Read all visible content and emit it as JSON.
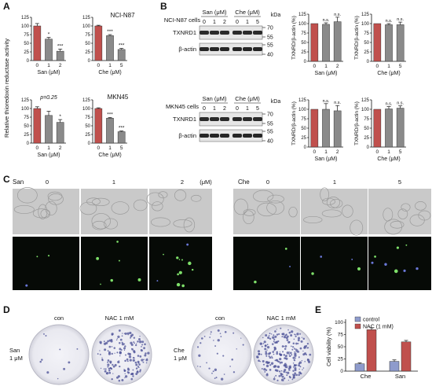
{
  "colors": {
    "red": "#c0504d",
    "grey": "#8a8a8a",
    "blue": "#8e9bcc",
    "axis": "#111111"
  },
  "panels": {
    "A": {
      "label": "A",
      "ylabel": "Relative thioredoxin reductase activity",
      "charts": [
        {
          "title": "",
          "cell_line": "",
          "xlabel": "San (μM)",
          "ticks": [
            "0",
            "1",
            "2"
          ],
          "ylim": [
            0,
            125
          ],
          "yticks": [
            "0",
            "25",
            "50",
            "75",
            "100",
            "125"
          ],
          "p_text": "",
          "sig": [
            "",
            "*",
            "***"
          ]
        },
        {
          "title": "NCI-N87",
          "cell_line": "NCI-N87",
          "xlabel": "Che (μM)",
          "ticks": [
            "0",
            "1",
            "5"
          ],
          "ylim": [
            0,
            125
          ],
          "yticks": [
            "0",
            "25",
            "50",
            "75",
            "100",
            "125"
          ],
          "p_text": "",
          "sig": [
            "",
            "***",
            "***"
          ]
        },
        {
          "title": "",
          "cell_line": "",
          "xlabel": "San (μM)",
          "ticks": [
            "0",
            "1",
            "2"
          ],
          "ylim": [
            0,
            125
          ],
          "yticks": [
            "0",
            "25",
            "50",
            "75",
            "100",
            "125"
          ],
          "p_text": "p=0.25",
          "sig": [
            "",
            "",
            "*"
          ]
        },
        {
          "title": "MKN45",
          "cell_line": "MKN45",
          "xlabel": "Che (μM)",
          "ticks": [
            "0",
            "1",
            "5"
          ],
          "ylim": [
            0,
            125
          ],
          "yticks": [
            "0",
            "25",
            "50",
            "75",
            "100",
            "125"
          ],
          "p_text": "",
          "sig": [
            "",
            "***",
            "***"
          ]
        }
      ]
    },
    "B": {
      "label": "B",
      "kda": "kDa",
      "blots": [
        {
          "cells": "NCI-N87 cells",
          "drug1": "San (μM)",
          "drug2": "Che (μM)",
          "lanes": [
            "0",
            "1",
            "2",
            "0",
            "1",
            "5"
          ],
          "rows": [
            "TXNRD1",
            "β-actin"
          ],
          "markers": [
            "70",
            "55",
            "55",
            "40"
          ]
        },
        {
          "cells": "MKN45 cells",
          "drug1": "San (μM)",
          "drug2": "Che (μM)",
          "lanes": [
            "0",
            "1",
            "2",
            "0",
            "1",
            "5"
          ],
          "rows": [
            "TXNRD1",
            "β-actin"
          ],
          "markers": [
            "70",
            "55",
            "55",
            "40"
          ]
        }
      ],
      "ylabel": "TXNRD/β-actin (%)",
      "charts": [
        {
          "xlabel": "San (μM)",
          "ticks": [
            "0",
            "1",
            "2"
          ],
          "sig": [
            "",
            "n.s.",
            "n.s."
          ],
          "yticks": [
            "0",
            "25",
            "50",
            "75",
            "100",
            "125"
          ]
        },
        {
          "xlabel": "Che (μM)",
          "ticks": [
            "0",
            "1",
            "5"
          ],
          "sig": [
            "",
            "n.s.",
            "n.s."
          ],
          "yticks": [
            "0",
            "25",
            "50",
            "75",
            "100",
            "125"
          ]
        },
        {
          "xlabel": "San (μM)",
          "ticks": [
            "0",
            "1",
            "2"
          ],
          "sig": [
            "",
            "n.s.",
            "n.s."
          ],
          "yticks": [
            "0",
            "25",
            "50",
            "75",
            "100",
            "125"
          ]
        },
        {
          "xlabel": "Che (μM)",
          "ticks": [
            "0",
            "1",
            "5"
          ],
          "sig": [
            "",
            "n.s.",
            "n.s."
          ],
          "yticks": [
            "0",
            "25",
            "50",
            "75",
            "100",
            "125"
          ]
        }
      ]
    },
    "C": {
      "label": "C",
      "san": "San",
      "che": "Che",
      "unit": "(μM)",
      "san_doses": [
        "0",
        "1",
        "2"
      ],
      "che_doses": [
        "0",
        "1",
        "5"
      ]
    },
    "D": {
      "label": "D",
      "con": "con",
      "nac": "NAC 1 mM",
      "san_row": [
        "San",
        "1 μM"
      ],
      "che_row": [
        "Che",
        "1 μM"
      ]
    },
    "E": {
      "label": "E",
      "ylabel": "Cell viability (%)",
      "legend": [
        "control",
        "NAC (1 mM)"
      ],
      "categories": [
        "Che",
        "San"
      ],
      "yticks": [
        "0",
        "25",
        "50",
        "75",
        "100"
      ]
    }
  },
  "chart_data": [
    {
      "type": "bar",
      "categories": [
        "0",
        "1",
        "2"
      ],
      "values": [
        100,
        62,
        27
      ],
      "errors": [
        7,
        5,
        6
      ],
      "xlabel": "San (μM)",
      "ylabel": "Relative thioredoxin reductase activity",
      "ylim": [
        0,
        125
      ]
    },
    {
      "type": "bar",
      "categories": [
        "0",
        "1",
        "5"
      ],
      "values": [
        100,
        72,
        32
      ],
      "errors": [
        2,
        3,
        3
      ],
      "xlabel": "Che (μM)",
      "title": "NCI-N87",
      "ylim": [
        0,
        125
      ]
    },
    {
      "type": "bar",
      "categories": [
        "0",
        "1",
        "2"
      ],
      "values": [
        100,
        80,
        60
      ],
      "errors": [
        5,
        12,
        8
      ],
      "xlabel": "San (μM)",
      "ylim": [
        0,
        125
      ]
    },
    {
      "type": "bar",
      "categories": [
        "0",
        "1",
        "5"
      ],
      "values": [
        100,
        72,
        33
      ],
      "errors": [
        2,
        2,
        2
      ],
      "xlabel": "Che (μM)",
      "title": "MKN45",
      "ylim": [
        0,
        125
      ]
    },
    {
      "type": "bar",
      "categories": [
        "0",
        "1",
        "2"
      ],
      "values": [
        100,
        98,
        105
      ],
      "errors": [
        0,
        4,
        12
      ],
      "xlabel": "San (μM)",
      "ylabel": "TXNRD/β-actin (%)",
      "ylim": [
        0,
        125
      ]
    },
    {
      "type": "bar",
      "categories": [
        "0",
        "1",
        "5"
      ],
      "values": [
        100,
        97,
        97
      ],
      "errors": [
        0,
        3,
        7
      ],
      "xlabel": "Che (μM)",
      "ylabel": "TXNRD/β-actin (%)",
      "ylim": [
        0,
        125
      ]
    },
    {
      "type": "bar",
      "categories": [
        "0",
        "1",
        "2"
      ],
      "values": [
        100,
        100,
        96
      ],
      "errors": [
        0,
        15,
        14
      ],
      "xlabel": "San (μM)",
      "ylabel": "TXNRD/β-actin (%)",
      "ylim": [
        0,
        125
      ]
    },
    {
      "type": "bar",
      "categories": [
        "0",
        "1",
        "5"
      ],
      "values": [
        100,
        101,
        103
      ],
      "errors": [
        0,
        6,
        6
      ],
      "xlabel": "Che (μM)",
      "ylabel": "TXNRD/β-actin (%)",
      "ylim": [
        0,
        125
      ]
    },
    {
      "type": "bar",
      "categories": [
        "Che",
        "San"
      ],
      "series": [
        {
          "name": "control",
          "values": [
            15,
            20
          ],
          "errors": [
            2,
            3
          ]
        },
        {
          "name": "NAC (1 mM)",
          "values": [
            85,
            60
          ],
          "errors": [
            4,
            3
          ]
        }
      ],
      "ylabel": "Cell viability (%)",
      "ylim": [
        0,
        100
      ]
    }
  ]
}
